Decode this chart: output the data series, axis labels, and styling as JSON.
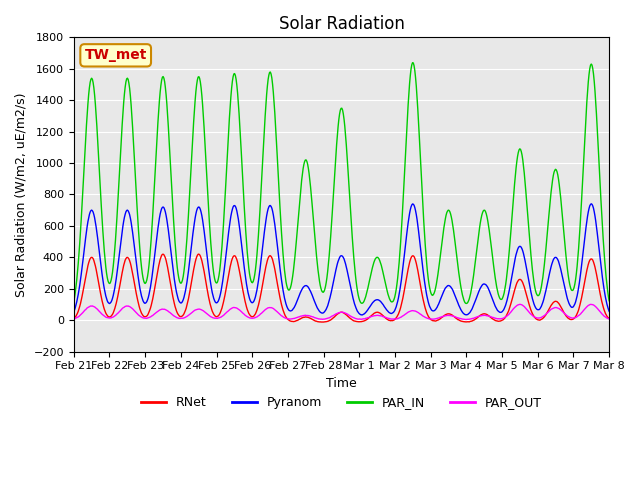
{
  "title": "Solar Radiation",
  "ylabel": "Solar Radiation (W/m2, uE/m2/s)",
  "xlabel": "Time",
  "annotation_text": "TW_met",
  "annotation_bbox": {
    "boxstyle": "round,pad=0.3",
    "facecolor": "#FFFFCC",
    "edgecolor": "#CC8800"
  },
  "annotation_text_color": "#CC0000",
  "ylim": [
    -200,
    1800
  ],
  "yticks": [
    -200,
    0,
    200,
    400,
    600,
    800,
    1000,
    1200,
    1400,
    1600,
    1800
  ],
  "bg_color": "#E8E8E8",
  "series": [
    "RNet",
    "Pyranom",
    "PAR_IN",
    "PAR_OUT"
  ],
  "colors": [
    "#FF0000",
    "#0000FF",
    "#00CC00",
    "#FF00FF"
  ],
  "x_tick_labels": [
    "Feb 21",
    "Feb 22",
    "Feb 23",
    "Feb 24",
    "Feb 25",
    "Feb 26",
    "Feb 27",
    "Feb 28",
    "Mar 1",
    "Mar 2",
    "Mar 3",
    "Mar 4",
    "Mar 5",
    "Mar 6",
    "Mar 7",
    "Mar 8"
  ],
  "n_points": 16,
  "lw": 1.0,
  "title_fontsize": 12,
  "label_fontsize": 9,
  "tick_fontsize": 8,
  "legend_fontsize": 9
}
